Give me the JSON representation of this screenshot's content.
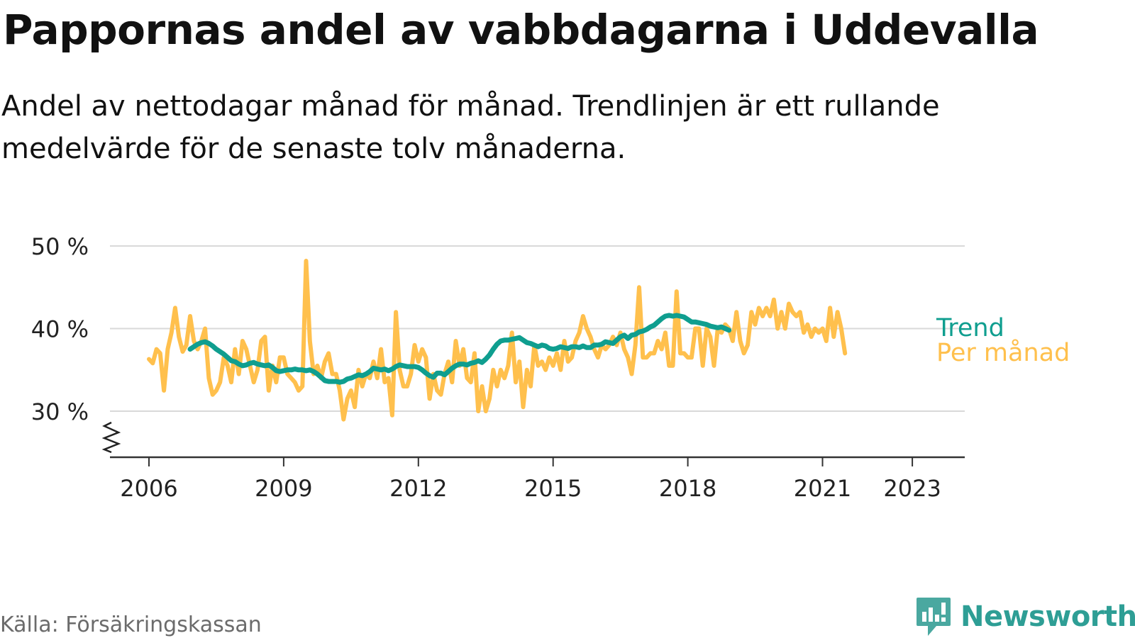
{
  "title": "Pappornas andel av vabbdagarna i Uddevalla",
  "subtitle": "Andel av nettodagar månad för månad. Trendlinjen är ett rullande medelvärde för de senaste tolv månaderna.",
  "source": "Källa: Försäkringskassan",
  "brand": {
    "name": "Newsworthy",
    "icon": "newsworthy-logo-icon"
  },
  "colors": {
    "trend": "#0f9e8f",
    "monthly": "#ffc04d",
    "grid": "#d9d9d9",
    "axis": "#333333"
  },
  "chart_data": {
    "type": "line",
    "ylim": [
      25,
      50
    ],
    "y_ticks": [
      {
        "value": 30,
        "label": "30 %"
      },
      {
        "value": 40,
        "label": "40 %"
      },
      {
        "value": 50,
        "label": "50 %"
      }
    ],
    "x_ticks": [
      {
        "value": 2006,
        "label": "2006"
      },
      {
        "value": 2009,
        "label": "2009"
      },
      {
        "value": 2012,
        "label": "2012"
      },
      {
        "value": 2015,
        "label": "2015"
      },
      {
        "value": 2018,
        "label": "2018"
      },
      {
        "value": 2021,
        "label": "2021"
      },
      {
        "value": 2023,
        "label": "2023"
      }
    ],
    "axis_break": true,
    "grid": true,
    "legend": "right end labels",
    "series": [
      {
        "name": "Per månad",
        "start": "2006-01",
        "values": [
          36.3,
          35.8,
          37.5,
          37.0,
          32.5,
          37.5,
          39.5,
          42.5,
          39.0,
          37.2,
          38.0,
          41.5,
          38.5,
          37.5,
          38.5,
          40.0,
          34.0,
          32.0,
          32.5,
          33.5,
          36.5,
          35.5,
          33.5,
          37.5,
          34.5,
          38.5,
          37.5,
          35.5,
          33.5,
          35.0,
          38.5,
          39.0,
          32.5,
          35.5,
          33.5,
          36.5,
          36.5,
          34.5,
          34.0,
          33.5,
          32.5,
          33.0,
          48.2,
          38.5,
          34.5,
          35.5,
          34.0,
          36.0,
          37.0,
          34.5,
          34.5,
          32.5,
          29.0,
          31.5,
          32.5,
          30.5,
          35.0,
          33.0,
          34.5,
          34.0,
          36.0,
          34.0,
          37.5,
          33.5,
          34.0,
          29.5,
          42.0,
          35.0,
          33.0,
          33.0,
          34.5,
          38.0,
          36.0,
          37.5,
          36.5,
          31.5,
          34.5,
          32.5,
          32.0,
          34.5,
          36.0,
          33.5,
          38.5,
          35.5,
          37.5,
          34.0,
          33.5,
          37.0,
          30.0,
          33.0,
          30.0,
          31.5,
          35.0,
          33.0,
          35.0,
          34.0,
          35.5,
          39.5,
          33.5,
          36.0,
          30.5,
          35.0,
          33.0,
          38.0,
          35.5,
          36.0,
          35.0,
          36.5,
          35.5,
          37.0,
          35.0,
          38.5,
          36.0,
          36.5,
          38.5,
          39.5,
          41.5,
          40.0,
          39.0,
          37.5,
          36.5,
          38.0,
          37.5,
          38.0,
          39.0,
          38.0,
          39.5,
          37.5,
          36.5,
          34.5,
          38.0,
          45.0,
          36.5,
          36.5,
          37.0,
          37.0,
          38.5,
          37.5,
          39.5,
          35.5,
          35.5,
          44.5,
          37.0,
          37.0,
          36.5,
          36.5,
          40.0,
          40.0,
          35.5,
          40.0,
          39.0,
          35.5,
          40.0,
          39.5,
          40.5,
          40.0,
          38.5,
          42.0,
          38.5,
          37.0,
          38.0,
          42.0,
          40.5,
          42.5,
          41.5,
          42.5,
          41.5,
          43.5,
          40.0,
          42.0,
          40.0,
          43.0,
          42.0,
          41.5,
          42.0,
          39.5,
          40.5,
          39.0,
          40.0,
          39.5,
          40.0,
          38.5,
          42.5,
          39.0,
          42.0,
          40.0,
          37.0
        ]
      },
      {
        "name": "Trend",
        "start": "2006-12",
        "values": [
          37.5,
          37.8,
          38.1,
          38.3,
          38.4,
          38.2,
          37.9,
          37.5,
          37.2,
          36.9,
          36.5,
          36.1,
          36.0,
          35.7,
          35.5,
          35.6,
          35.8,
          35.9,
          35.7,
          35.6,
          35.5,
          35.6,
          35.3,
          34.9,
          34.8,
          34.9,
          35.0,
          35.0,
          35.1,
          35.0,
          35.0,
          34.9,
          35.0,
          34.8,
          34.5,
          34.1,
          33.7,
          33.6,
          33.6,
          33.6,
          33.5,
          33.6,
          33.9,
          34.0,
          34.2,
          34.4,
          34.3,
          34.5,
          34.8,
          35.2,
          35.1,
          35.0,
          35.1,
          34.9,
          35.1,
          35.4,
          35.6,
          35.5,
          35.4,
          35.4,
          35.4,
          35.3,
          35.0,
          34.6,
          34.3,
          34.1,
          34.6,
          34.6,
          34.4,
          34.8,
          35.2,
          35.5,
          35.7,
          35.7,
          35.6,
          35.8,
          35.9,
          36.1,
          35.9,
          36.3,
          36.8,
          37.5,
          38.1,
          38.5,
          38.6,
          38.6,
          38.7,
          38.8,
          38.9,
          38.6,
          38.3,
          38.2,
          38.0,
          37.8,
          38.0,
          37.9,
          37.6,
          37.5,
          37.6,
          37.8,
          37.7,
          37.6,
          37.8,
          37.8,
          37.7,
          37.9,
          37.7,
          37.7,
          38.0,
          38.0,
          38.1,
          38.4,
          38.3,
          38.2,
          38.6,
          39.0,
          39.2,
          38.8,
          39.2,
          39.3,
          39.6,
          39.7,
          39.9,
          40.2,
          40.4,
          40.8,
          41.2,
          41.5,
          41.6,
          41.5,
          41.6,
          41.5,
          41.4,
          41.1,
          40.8,
          40.8,
          40.7,
          40.6,
          40.5,
          40.3,
          40.2,
          40.1,
          40.2,
          40.0,
          39.8
        ]
      }
    ]
  }
}
